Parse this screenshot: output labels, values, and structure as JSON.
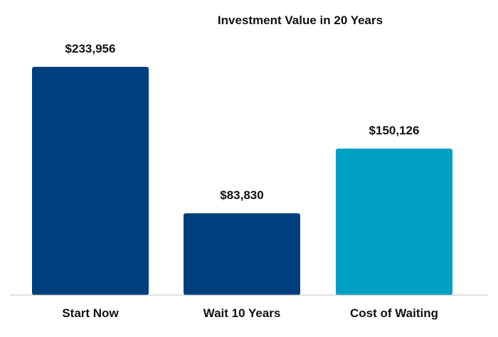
{
  "chart_data": {
    "type": "bar",
    "title": "Investment Value in 20 Years",
    "categories": [
      "Start Now",
      "Wait 10 Years",
      "Cost of Waiting"
    ],
    "values": [
      233956,
      83830,
      150126
    ],
    "value_labels": [
      "$233,956",
      "$83,830",
      "$150,126"
    ],
    "colors": [
      "#003f7d",
      "#003f7d",
      "#00a0c4"
    ],
    "ylim": [
      0,
      233956
    ],
    "grid": false,
    "legend": "none",
    "xlabel": "",
    "ylabel": ""
  }
}
